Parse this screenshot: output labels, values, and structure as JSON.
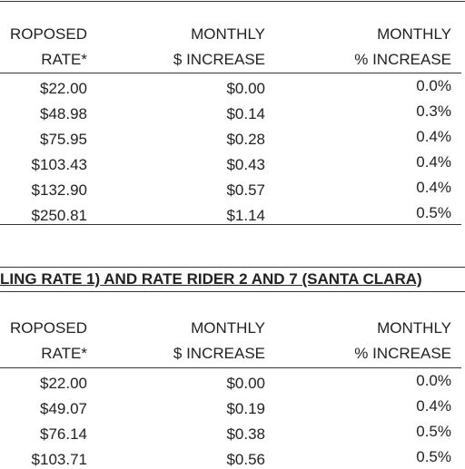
{
  "table1": {
    "header": [
      [
        "ROPOSED",
        "MONTHLY",
        "MONTHLY"
      ],
      [
        "RATE*",
        "$ INCREASE",
        "% INCREASE"
      ]
    ],
    "rows": [
      [
        "$22.00",
        "$0.00",
        "0.0%"
      ],
      [
        "$48.98",
        "$0.14",
        "0.3%"
      ],
      [
        "$75.95",
        "$0.28",
        "0.4%"
      ],
      [
        "$103.43",
        "$0.43",
        "0.4%"
      ],
      [
        "$132.90",
        "$0.57",
        "0.4%"
      ],
      [
        "$250.81",
        "$1.14",
        "0.5%"
      ]
    ]
  },
  "table2": {
    "title": "LING RATE 1) AND RATE RIDER 2 AND 7 (SANTA CLARA)",
    "header": [
      [
        "ROPOSED",
        "MONTHLY",
        "MONTHLY"
      ],
      [
        "RATE*",
        "$ INCREASE",
        "% INCREASE"
      ]
    ],
    "rows": [
      [
        "$22.00",
        "$0.00",
        "0.0%"
      ],
      [
        "$49.07",
        "$0.19",
        "0.4%"
      ],
      [
        "$76.14",
        "$0.38",
        "0.5%"
      ],
      [
        "$103.71",
        "$0.56",
        "0.5%"
      ]
    ]
  }
}
